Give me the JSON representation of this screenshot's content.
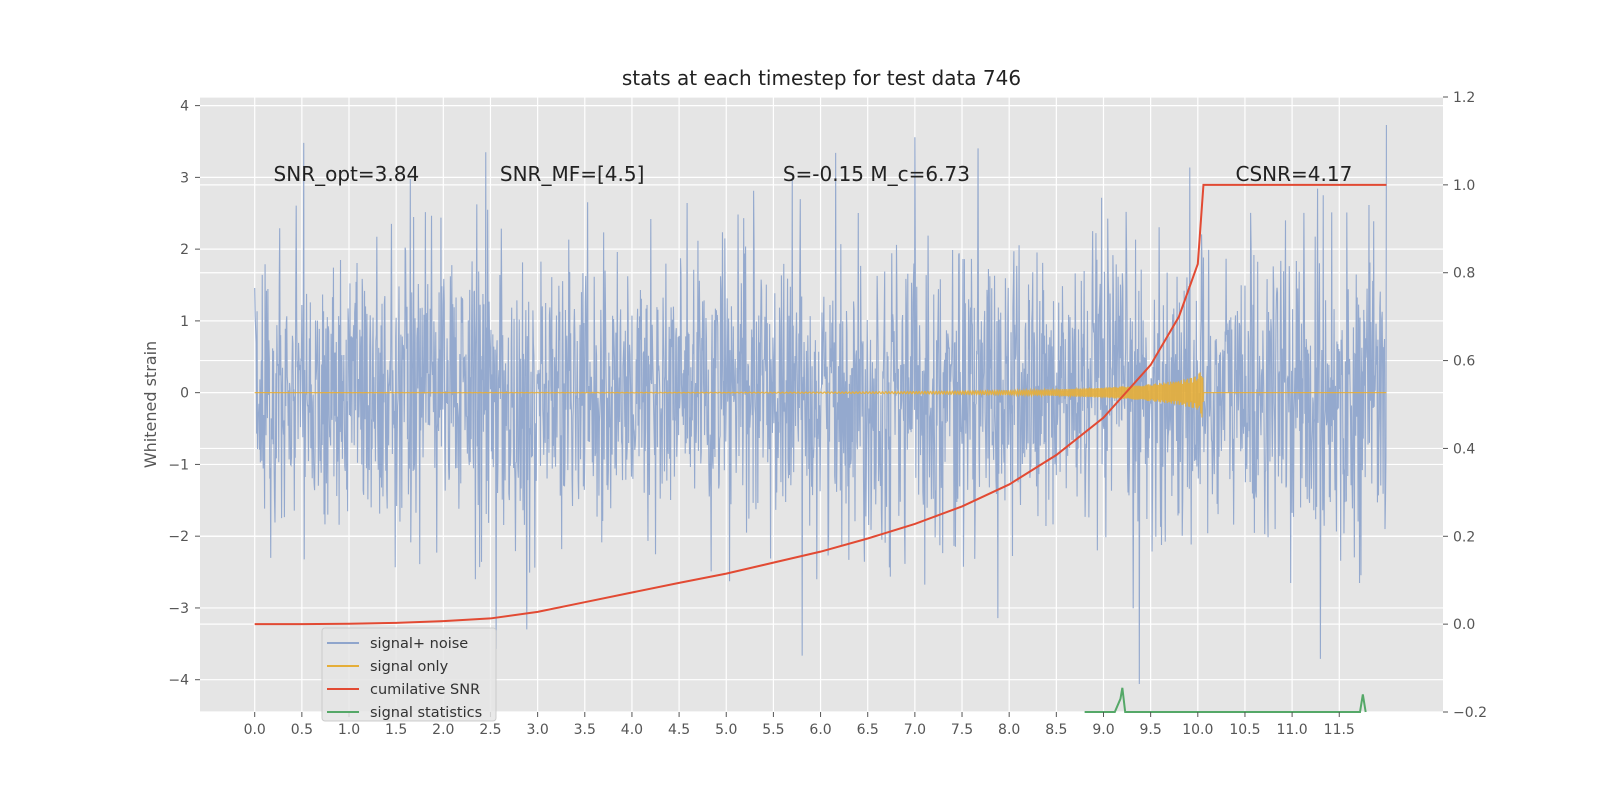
{
  "chart_data": {
    "type": "line",
    "title": "stats at each timestep for test data 746",
    "ylabel": "Whitened strain",
    "ylabel_right": "",
    "xlim": [
      -0.58,
      12.6
    ],
    "ylim": [
      -4.45,
      4.12
    ],
    "ylim_right": [
      -0.2,
      1.2
    ],
    "x_ticks": [
      0.0,
      0.5,
      1.0,
      1.5,
      2.0,
      2.5,
      3.0,
      3.5,
      4.0,
      4.5,
      5.0,
      5.5,
      6.0,
      6.5,
      7.0,
      7.5,
      8.0,
      8.5,
      9.0,
      9.5,
      10.0,
      10.5,
      11.0,
      11.5
    ],
    "x_tick_labels": [
      "0.0",
      "0.5",
      "1.0",
      "1.5",
      "2.0",
      "2.5",
      "3.0",
      "3.5",
      "4.0",
      "4.5",
      "5.0",
      "5.5",
      "6.0",
      "6.5",
      "7.0",
      "7.5",
      "8.0",
      "8.5",
      "9.0",
      "9.5",
      "10.0",
      "10.5",
      "11.0",
      "11.5"
    ],
    "y_ticks": [
      -4,
      -3,
      -2,
      -1,
      0,
      1,
      2,
      3,
      4
    ],
    "y_tick_labels": [
      "−4",
      "−3",
      "−2",
      "−1",
      "0",
      "1",
      "2",
      "3",
      "4"
    ],
    "y_right_ticks": [
      -0.2,
      0.0,
      0.2,
      0.4,
      0.6,
      0.8,
      1.0,
      1.2
    ],
    "y_right_tick_labels": [
      "−0.2",
      "0.0",
      "0.2",
      "0.4",
      "0.6",
      "0.8",
      "1.0",
      "1.2"
    ],
    "grid": true,
    "legend_position": "lower-left",
    "annotations": [
      {
        "text": "SNR_opt=3.84",
        "x": 0.2,
        "y": 2.95
      },
      {
        "text": "SNR_MF=[4.5]",
        "x": 2.6,
        "y": 2.95
      },
      {
        "text": "S=-0.15  M_c=6.73",
        "x": 5.6,
        "y": 2.95
      },
      {
        "text": "CSNR=4.17",
        "x": 10.4,
        "y": 2.95
      }
    ],
    "series": [
      {
        "name": "signal+ noise",
        "color": "#8fa5cc",
        "axis": "left",
        "x_range": [
          0.0,
          12.0
        ],
        "amplitude_std": 1.0,
        "notes_values": [
          {
            "x": 0.52,
            "y": 3.48
          },
          {
            "x": 2.45,
            "y": 3.35
          },
          {
            "x": 7.0,
            "y": 3.56
          },
          {
            "x": 12.0,
            "y": 3.73
          },
          {
            "x": 2.56,
            "y": -3.57
          },
          {
            "x": 9.38,
            "y": -4.06
          },
          {
            "x": 11.3,
            "y": -3.71
          }
        ]
      },
      {
        "name": "signal only",
        "color": "#e5ae38",
        "axis": "left",
        "x": [
          0.0,
          5.0,
          6.0,
          7.0,
          8.0,
          8.5,
          9.0,
          9.5,
          9.8,
          10.0,
          10.05,
          10.06,
          12.0
        ],
        "envelope": [
          0.0,
          0.004,
          0.008,
          0.015,
          0.03,
          0.045,
          0.07,
          0.12,
          0.17,
          0.24,
          0.36,
          0.0,
          0.0
        ]
      },
      {
        "name": "cumilative SNR",
        "color": "#e24a33",
        "axis": "right",
        "x": [
          0.0,
          0.5,
          1.0,
          1.5,
          2.0,
          2.5,
          3.0,
          3.5,
          4.0,
          4.5,
          5.0,
          5.5,
          6.0,
          6.5,
          7.0,
          7.5,
          8.0,
          8.5,
          9.0,
          9.5,
          9.8,
          10.0,
          10.06,
          12.0
        ],
        "values": [
          0.0,
          0.0,
          0.001,
          0.003,
          0.007,
          0.013,
          0.028,
          0.05,
          0.072,
          0.094,
          0.115,
          0.14,
          0.165,
          0.195,
          0.228,
          0.268,
          0.318,
          0.385,
          0.47,
          0.59,
          0.7,
          0.82,
          1.0,
          1.0
        ]
      },
      {
        "name": "signal statistics",
        "color": "#55a868",
        "axis": "right",
        "x": [
          8.8,
          8.85,
          9.0,
          9.12,
          9.18,
          9.2,
          9.23,
          9.35,
          11.5,
          11.72,
          11.75,
          11.78
        ],
        "values": [
          -0.2,
          -0.2,
          -0.2,
          -0.2,
          -0.17,
          -0.145,
          -0.2,
          -0.2,
          -0.2,
          -0.2,
          -0.16,
          -0.2
        ]
      }
    ],
    "legend": [
      {
        "label": "signal+ noise",
        "color": "#8fa5cc"
      },
      {
        "label": "signal only",
        "color": "#e5ae38"
      },
      {
        "label": "cumilative SNR",
        "color": "#e24a33"
      },
      {
        "label": "signal statistics",
        "color": "#55a868"
      }
    ]
  }
}
